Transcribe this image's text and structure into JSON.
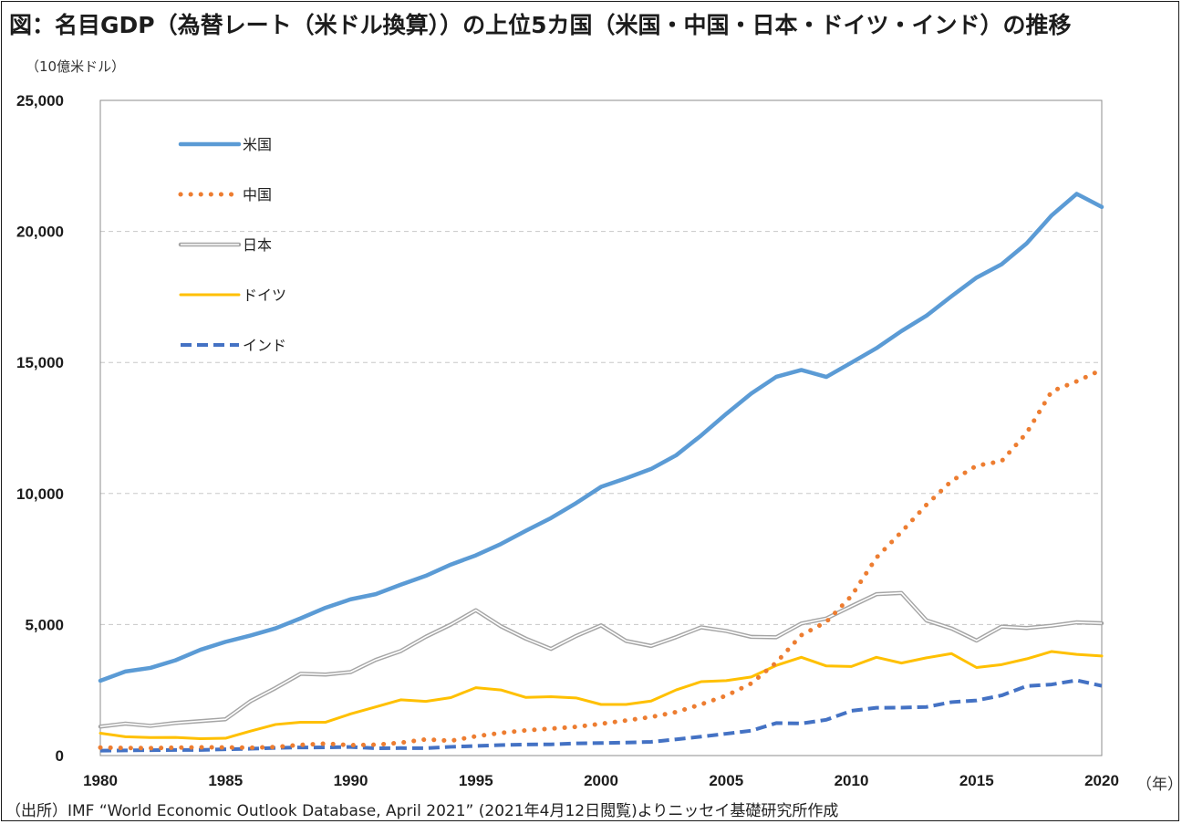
{
  "title": "図：名目GDP（為替レート（米ドル換算））の上位5カ国（米国・中国・日本・ドイツ・インド）の推移",
  "unit_label": "（10億米ドル）",
  "x_unit_label": "（年）",
  "source": "（出所）IMF “World Economic Outlook Database, April 2021” (2021年4月12日閲覧)よりニッセイ基礎研究所作成",
  "chart_data": {
    "type": "line",
    "x": [
      1980,
      1981,
      1982,
      1983,
      1984,
      1985,
      1986,
      1987,
      1988,
      1989,
      1990,
      1991,
      1992,
      1993,
      1994,
      1995,
      1996,
      1997,
      1998,
      1999,
      2000,
      2001,
      2002,
      2003,
      2004,
      2005,
      2006,
      2007,
      2008,
      2009,
      2010,
      2011,
      2012,
      2013,
      2014,
      2015,
      2016,
      2017,
      2018,
      2019,
      2020
    ],
    "xticks": [
      1980,
      1985,
      1990,
      1995,
      2000,
      2005,
      2010,
      2015,
      2020
    ],
    "xticklabels": [
      "1980",
      "1985",
      "1990",
      "1995",
      "2000",
      "2005",
      "2010",
      "2015",
      "2020"
    ],
    "xlim": [
      1980,
      2020
    ],
    "ylim": [
      0,
      25000
    ],
    "yticks": [
      0,
      5000,
      10000,
      15000,
      20000,
      25000
    ],
    "yticklabels": [
      "0",
      "5,000",
      "10,000",
      "15,000",
      "20,000",
      "25,000"
    ],
    "grid": "horizontal dashed",
    "legend_position": "top-left",
    "series": [
      {
        "name": "米国",
        "color": "#5b9bd5",
        "style": "solid",
        "values": [
          2857,
          3207,
          3344,
          3634,
          4037,
          4339,
          4580,
          4855,
          5236,
          5642,
          5963,
          6158,
          6520,
          6859,
          7287,
          7640,
          8073,
          8578,
          9063,
          9631,
          10252,
          10582,
          10936,
          11458,
          12214,
          13037,
          13815,
          14452,
          14713,
          14449,
          14992,
          15543,
          16197,
          16785,
          17527,
          18238,
          18745,
          19543,
          20612,
          21433,
          20933
        ]
      },
      {
        "name": "中国",
        "color": "#ed7d31",
        "style": "dotted",
        "values": [
          306,
          289,
          283,
          302,
          314,
          310,
          300,
          327,
          407,
          457,
          397,
          413,
          490,
          617,
          563,
          735,
          863,
          962,
          1029,
          1094,
          1211,
          1339,
          1471,
          1660,
          1955,
          2286,
          2752,
          3550,
          4594,
          5102,
          6087,
          7552,
          8532,
          9570,
          10476,
          11062,
          11233,
          12310,
          13895,
          14280,
          14723
        ]
      },
      {
        "name": "日本",
        "color": "#a5a5a5",
        "style": "double",
        "values": [
          1105,
          1220,
          1134,
          1244,
          1314,
          1385,
          2075,
          2578,
          3121,
          3090,
          3186,
          3653,
          3989,
          4533,
          4998,
          5546,
          4934,
          4459,
          4071,
          4561,
          4968,
          4374,
          4183,
          4519,
          4893,
          4755,
          4530,
          4515,
          5038,
          5231,
          5700,
          6157,
          6203,
          5156,
          4850,
          4389,
          4922,
          4867,
          4955,
          5082,
          5049
        ]
      },
      {
        "name": "ドイツ",
        "color": "#ffc000",
        "style": "solid",
        "values": [
          854,
          718,
          688,
          690,
          643,
          660,
          935,
          1186,
          1271,
          1273,
          1590,
          1858,
          2127,
          2067,
          2210,
          2591,
          2503,
          2219,
          2246,
          2200,
          1950,
          1950,
          2079,
          2505,
          2820,
          2860,
          3000,
          3440,
          3750,
          3420,
          3400,
          3750,
          3530,
          3730,
          3890,
          3360,
          3470,
          3690,
          3970,
          3860,
          3800
        ]
      },
      {
        "name": "インド",
        "color": "#4472c4",
        "style": "dashed",
        "values": [
          186,
          196,
          205,
          214,
          215,
          239,
          260,
          290,
          310,
          312,
          327,
          278,
          285,
          283,
          333,
          366,
          400,
          423,
          428,
          466,
          477,
          494,
          523,
          618,
          722,
          834,
          949,
          1239,
          1224,
          1365,
          1708,
          1823,
          1828,
          1856,
          2039,
          2104,
          2295,
          2652,
          2713,
          2870,
          2660
        ]
      }
    ]
  }
}
